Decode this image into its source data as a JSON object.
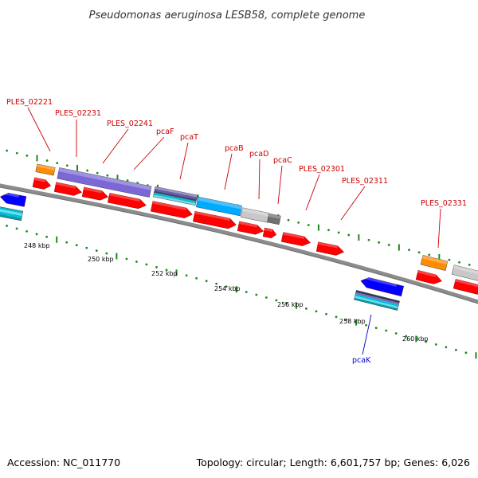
{
  "title": "Pseudomonas aeruginosa LESB58, complete genome",
  "accession": "Accession: NC_011770",
  "topology": "Topology: circular; Length: 6,601,757 bp; Genes: 6,026",
  "colors": {
    "backbone": "#8c8c8c",
    "tick": "#1f8a1f",
    "label_forward": "#cc0000",
    "label_reverse": "#0000cc",
    "cds": "#ff0000",
    "trna": "#ff8c00",
    "purple": "#7b68d6",
    "cyan": "#00bcd4",
    "blue": "#0000ff",
    "sky": "#00aaff",
    "grey": "#c8c8c8",
    "darkgrey": "#707070",
    "stripe": "#555577"
  },
  "ruler": {
    "tick_labels": [
      "248 kbp",
      "250 kbp",
      "252 kbp",
      "254 kbp",
      "256 kbp",
      "258 kbp",
      "260 kbp"
    ]
  },
  "gene_labels": [
    {
      "text": "PLES_02221",
      "strand": "forward"
    },
    {
      "text": "PLES_02231",
      "strand": "forward"
    },
    {
      "text": "PLES_02241",
      "strand": "forward"
    },
    {
      "text": "pcaF",
      "strand": "forward"
    },
    {
      "text": "pcaT",
      "strand": "forward"
    },
    {
      "text": "pcaB",
      "strand": "forward"
    },
    {
      "text": "pcaD",
      "strand": "forward"
    },
    {
      "text": "pcaC",
      "strand": "forward"
    },
    {
      "text": "PLES_02301",
      "strand": "forward"
    },
    {
      "text": "PLES_02311",
      "strand": "forward"
    },
    {
      "text": "PLES_02331",
      "strand": "forward"
    },
    {
      "text": "pcaK",
      "strand": "reverse"
    }
  ]
}
